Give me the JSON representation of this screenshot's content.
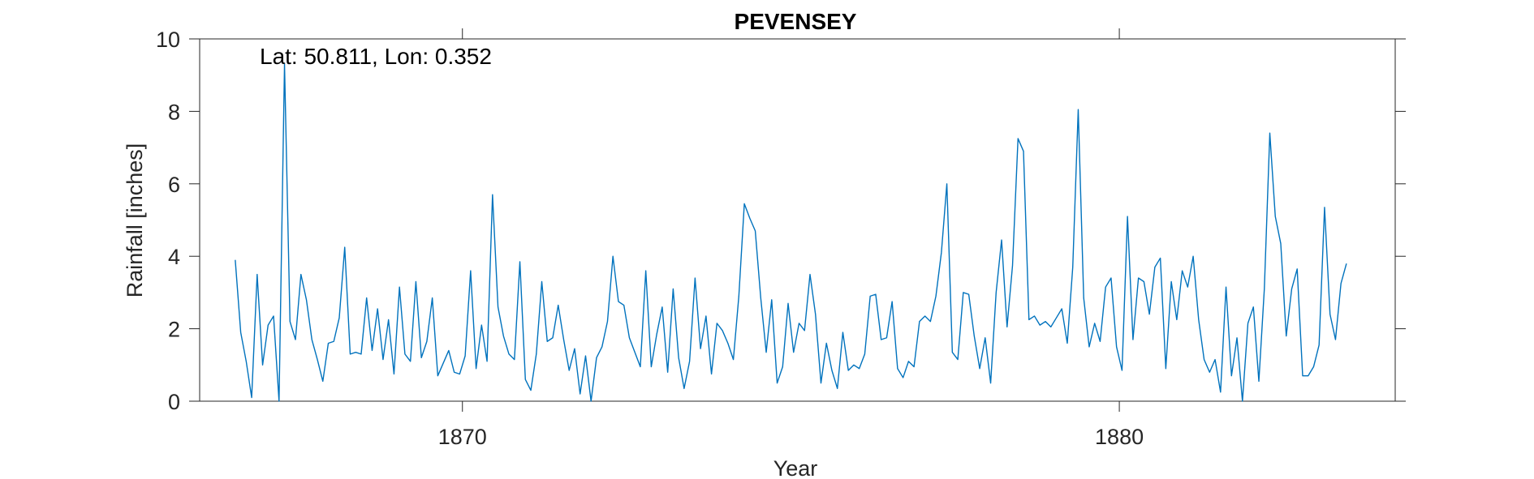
{
  "chart_data": {
    "type": "line",
    "title": "PEVENSEY",
    "annotation": "Lat: 50.811, Lon: 0.352",
    "xlabel": "Year",
    "ylabel": "Rainfall [inches]",
    "xlim": [
      1866.0,
      1884.2
    ],
    "ylim": [
      0,
      10
    ],
    "xticks": [
      1870,
      1880
    ],
    "xtick_labels": [
      "1870",
      "1880"
    ],
    "yticks": [
      0,
      2,
      4,
      6,
      8,
      10
    ],
    "ytick_labels": [
      "0",
      "2",
      "4",
      "6",
      "8",
      "10"
    ],
    "grid": false,
    "series": [
      {
        "color": "#0072BD",
        "x_start": 1866.5417,
        "x_step": 0.08333,
        "values": [
          3.9,
          1.9,
          1.1,
          0.1,
          3.5,
          1.0,
          2.1,
          2.35,
          0.0,
          9.3,
          2.2,
          1.7,
          3.5,
          2.8,
          1.7,
          1.15,
          0.55,
          1.6,
          1.65,
          2.3,
          4.25,
          1.3,
          1.35,
          1.3,
          2.85,
          1.4,
          2.55,
          1.15,
          2.25,
          0.75,
          3.15,
          1.3,
          1.1,
          3.3,
          1.2,
          1.65,
          2.85,
          0.7,
          1.05,
          1.4,
          0.8,
          0.75,
          1.25,
          3.6,
          0.9,
          2.1,
          1.1,
          5.7,
          2.6,
          1.8,
          1.3,
          1.15,
          3.85,
          0.6,
          0.3,
          1.3,
          3.3,
          1.65,
          1.75,
          2.65,
          1.7,
          0.85,
          1.45,
          0.2,
          1.25,
          0.0,
          1.2,
          1.5,
          2.2,
          4.0,
          2.75,
          2.65,
          1.75,
          1.35,
          0.95,
          3.6,
          0.95,
          1.85,
          2.6,
          0.8,
          3.1,
          1.2,
          0.35,
          1.1,
          3.4,
          1.45,
          2.35,
          0.75,
          2.15,
          1.95,
          1.6,
          1.15,
          2.9,
          5.45,
          5.05,
          4.7,
          2.85,
          1.35,
          2.8,
          0.5,
          0.95,
          2.7,
          1.35,
          2.15,
          1.95,
          3.5,
          2.4,
          0.5,
          1.6,
          0.85,
          0.35,
          1.9,
          0.85,
          1.0,
          0.9,
          1.3,
          2.9,
          2.95,
          1.7,
          1.75,
          2.75,
          0.9,
          0.65,
          1.1,
          0.95,
          2.2,
          2.35,
          2.2,
          2.9,
          4.1,
          6.0,
          1.35,
          1.15,
          3.0,
          2.95,
          1.8,
          0.9,
          1.75,
          0.5,
          3.0,
          4.45,
          2.05,
          3.75,
          7.25,
          6.9,
          2.25,
          2.35,
          2.1,
          2.2,
          2.05,
          2.3,
          2.55,
          1.6,
          3.7,
          8.05,
          2.85,
          1.5,
          2.15,
          1.65,
          3.15,
          3.4,
          1.5,
          0.85,
          5.1,
          1.7,
          3.4,
          3.3,
          2.4,
          3.7,
          3.95,
          0.9,
          3.3,
          2.25,
          3.6,
          3.15,
          4.0,
          2.25,
          1.15,
          0.8,
          1.15,
          0.25,
          3.15,
          0.7,
          1.75,
          0.0,
          2.15,
          2.6,
          0.55,
          3.1,
          7.4,
          5.1,
          4.35,
          1.8,
          3.1,
          3.65,
          0.7,
          0.7,
          0.95,
          1.55,
          5.35,
          2.4,
          1.7,
          3.25,
          3.8
        ]
      }
    ]
  }
}
